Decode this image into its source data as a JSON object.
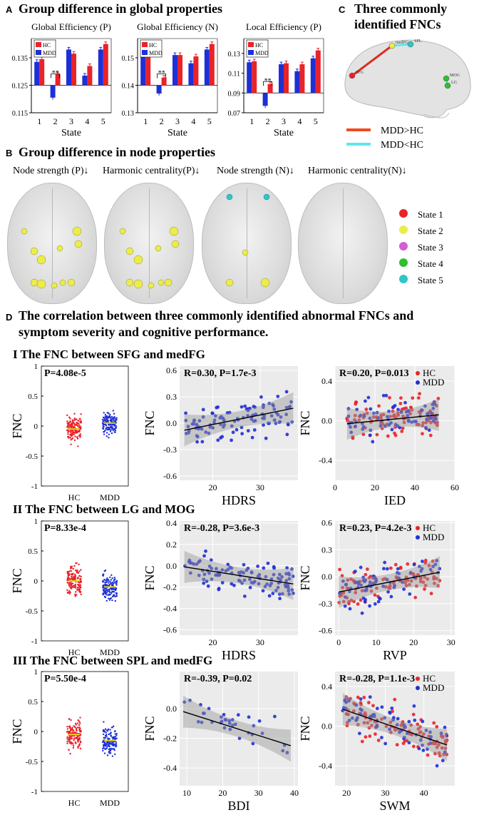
{
  "panel_a": {
    "letter": "A",
    "title": "Group difference in  global properties",
    "x_axis_label": "State",
    "legend": [
      "HC",
      "MDD"
    ],
    "colors": {
      "hc": "#e8232a",
      "mdd": "#1f2fd6"
    }
  },
  "panel_b": {
    "letter": "B",
    "title": "Group difference in  node properties",
    "columns": [
      "Node strength (P)↓",
      "Harmonic centrality(P)↓",
      "Node strength (N)↓",
      "Harmonic centrality(N)↓"
    ],
    "legend": [
      {
        "label": "State 1",
        "color": "#e8232a"
      },
      {
        "label": "State 2",
        "color": "#ecec4a"
      },
      {
        "label": "State 3",
        "color": "#d35fd3"
      },
      {
        "label": "State 4",
        "color": "#2fbf2f"
      },
      {
        "label": "State 5",
        "color": "#2fc6c6"
      }
    ]
  },
  "panel_c": {
    "letter": "C",
    "title_line1": "Three commonly",
    "title_line2": "identified FNCs",
    "node_labels": [
      "SFG",
      "medFG",
      "SPL",
      "MOG",
      "LG"
    ],
    "legend": [
      {
        "label": "MDD>HC",
        "color": "#f04a1e"
      },
      {
        "label": "MDD<HC",
        "color": "#5ee6f0"
      }
    ]
  },
  "panel_d": {
    "letter": "D",
    "title_line1": "The correlation between three commonly identified abnormal FNCs and",
    "title_line2": "symptom severity and cognitive performance.",
    "rows": [
      {
        "title": "I The FNC between SFG and medFG"
      },
      {
        "title": "II The FNC between LG and MOG"
      },
      {
        "title": "III The FNC between SPL and medFG"
      }
    ],
    "group_labels": [
      "HC",
      "MDD"
    ],
    "y_label": "FNC"
  },
  "chart_data": [
    {
      "id": "global-eff-p",
      "type": "bar",
      "title": "Global Efficiency (P)",
      "xlabel": "State",
      "ylabel": "",
      "ylim": [
        0.115,
        0.142
      ],
      "yticks": [
        0.115,
        0.125,
        0.135
      ],
      "ytick_labels": [
        "0.115",
        "0.125",
        "0.135"
      ],
      "baseline": 0.125,
      "categories": [
        "1",
        "2",
        "3",
        "4",
        "5"
      ],
      "series": [
        {
          "name": "HC",
          "values": [
            0.1345,
            0.129,
            0.1365,
            0.132,
            0.14
          ]
        },
        {
          "name": "MDD",
          "values": [
            0.1335,
            0.1205,
            0.138,
            0.1285,
            0.138
          ]
        }
      ],
      "significant": [
        "2"
      ]
    },
    {
      "id": "global-eff-n",
      "type": "bar",
      "title": "Global Efficiency (N)",
      "xlabel": "State",
      "ylabel": "",
      "ylim": [
        0.13,
        0.157
      ],
      "yticks": [
        0.13,
        0.14,
        0.15
      ],
      "ytick_labels": [
        "0.13",
        "0.14",
        "0.15"
      ],
      "baseline": 0.14,
      "categories": [
        "1",
        "2",
        "3",
        "4",
        "5"
      ],
      "series": [
        {
          "name": "HC",
          "values": [
            0.1525,
            0.1428,
            0.151,
            0.1505,
            0.155
          ]
        },
        {
          "name": "MDD",
          "values": [
            0.1515,
            0.137,
            0.151,
            0.148,
            0.153
          ]
        }
      ],
      "significant": [
        "2"
      ]
    },
    {
      "id": "local-eff-p",
      "type": "bar",
      "title": "Local Efficiency (P)",
      "xlabel": "State",
      "ylabel": "",
      "ylim": [
        0.07,
        0.145
      ],
      "yticks": [
        0.07,
        0.09,
        0.11,
        0.13
      ],
      "ytick_labels": [
        "0.07",
        "0.09",
        "0.11",
        "0.13"
      ],
      "baseline": 0.09,
      "categories": [
        "1",
        "2",
        "3",
        "4",
        "5"
      ],
      "series": [
        {
          "name": "HC",
          "values": [
            0.122,
            0.099,
            0.12,
            0.119,
            0.133
          ]
        },
        {
          "name": "MDD",
          "values": [
            0.121,
            0.077,
            0.119,
            0.112,
            0.125
          ]
        }
      ],
      "significant": [
        "2"
      ]
    },
    {
      "id": "strip-1",
      "type": "scatter",
      "title": "P=4.08e-5",
      "xlabel": "",
      "ylabel": "FNC",
      "ylim": [
        -1,
        1
      ],
      "yticks": [
        -1,
        -0.5,
        0,
        0.5,
        1
      ],
      "ytick_labels": [
        "-1",
        "-0.5",
        "0",
        "0.5",
        "1"
      ],
      "categories": [
        "HC",
        "MDD"
      ],
      "means": [
        -0.05,
        0.05
      ],
      "spread": [
        [
          -0.6,
          0.48
        ],
        [
          -0.38,
          0.45
        ]
      ]
    },
    {
      "id": "scatter-1a",
      "type": "scatter",
      "title": "R=0.30, P=1.7e-3",
      "xlabel": "HDRS",
      "ylabel": "FNC",
      "xlim": [
        13,
        38
      ],
      "ylim": [
        -0.65,
        0.65
      ],
      "xticks": [
        20,
        30
      ],
      "xtick_labels": [
        "20",
        "30"
      ],
      "yticks": [
        -0.6,
        -0.3,
        0.0,
        0.3,
        0.6
      ],
      "ytick_labels": [
        "-0.6",
        "-0.3",
        "0.0",
        "0.3",
        "0.6"
      ],
      "fit": [
        [
          14,
          -0.08
        ],
        [
          37,
          0.17
        ]
      ],
      "series": [
        {
          "name": "MDD",
          "count": 110
        }
      ]
    },
    {
      "id": "scatter-1b",
      "type": "scatter",
      "title": "R=0.20, P=0.013",
      "xlabel": "IED",
      "ylabel": "FNC",
      "xlim": [
        0,
        60
      ],
      "ylim": [
        -0.6,
        0.55
      ],
      "xticks": [
        0,
        20,
        40,
        60
      ],
      "xtick_labels": [
        "0",
        "20",
        "40",
        "60"
      ],
      "yticks": [
        -0.4,
        0.0,
        0.4
      ],
      "ytick_labels": [
        "-0.4",
        "0.0",
        "0.4"
      ],
      "fit": [
        [
          6,
          -0.03
        ],
        [
          52,
          0.06
        ]
      ],
      "series": [
        {
          "name": "HC",
          "count": 100
        },
        {
          "name": "MDD",
          "count": 70
        }
      ]
    },
    {
      "id": "strip-2",
      "type": "scatter",
      "title": "P=8.33e-4",
      "xlabel": "",
      "ylabel": "FNC",
      "ylim": [
        -1,
        1
      ],
      "yticks": [
        -1,
        -0.5,
        0,
        0.5,
        1
      ],
      "ytick_labels": [
        "-1",
        "-0.5",
        "0",
        "0.5",
        "1"
      ],
      "categories": [
        "HC",
        "MDD"
      ],
      "means": [
        0.0,
        -0.1
      ],
      "spread": [
        [
          -0.72,
          0.55
        ],
        [
          -0.55,
          0.38
        ]
      ]
    },
    {
      "id": "scatter-2a",
      "type": "scatter",
      "title": "R=-0.28, P=3.6e-3",
      "xlabel": "HDRS",
      "ylabel": "FNC",
      "xlim": [
        13,
        38
      ],
      "ylim": [
        -0.65,
        0.42
      ],
      "xticks": [
        20,
        30
      ],
      "xtick_labels": [
        "20",
        "30"
      ],
      "yticks": [
        -0.6,
        -0.4,
        -0.2,
        0.0,
        0.2,
        0.4
      ],
      "ytick_labels": [
        "-0.6",
        "-0.4",
        "-0.2",
        "0.0",
        "0.2",
        "0.4"
      ],
      "fit": [
        [
          14,
          -0.01
        ],
        [
          37,
          -0.17
        ]
      ],
      "series": [
        {
          "name": "MDD",
          "count": 110
        }
      ]
    },
    {
      "id": "scatter-2b",
      "type": "scatter",
      "title": "R=0.23, P=4.2e-3",
      "xlabel": "RVP",
      "ylabel": "FNC",
      "xlim": [
        -1,
        31
      ],
      "ylim": [
        -0.65,
        0.62
      ],
      "xticks": [
        0,
        10,
        20,
        30
      ],
      "xtick_labels": [
        "0",
        "10",
        "20",
        "30"
      ],
      "yticks": [
        -0.6,
        -0.3,
        0.0,
        0.3,
        0.6
      ],
      "ytick_labels": [
        "-0.6",
        "-0.3",
        "0.0",
        "0.3",
        "0.6"
      ],
      "fit": [
        [
          0,
          -0.17
        ],
        [
          27,
          0.05
        ]
      ],
      "series": [
        {
          "name": "HC",
          "count": 100
        },
        {
          "name": "MDD",
          "count": 70
        }
      ]
    },
    {
      "id": "strip-3",
      "type": "scatter",
      "title": "P=5.50e-4",
      "xlabel": "",
      "ylabel": "FNC",
      "ylim": [
        -1,
        1
      ],
      "yticks": [
        -1,
        -0.5,
        0,
        0.5,
        1
      ],
      "ytick_labels": [
        "-1",
        "-0.5",
        "0",
        "0.5",
        "1"
      ],
      "categories": [
        "HC",
        "MDD"
      ],
      "means": [
        -0.05,
        -0.15
      ],
      "spread": [
        [
          -0.6,
          0.55
        ],
        [
          -0.6,
          0.45
        ]
      ]
    },
    {
      "id": "scatter-3a",
      "type": "scatter",
      "title": "R=-0.39, P=0.02",
      "xlabel": "BDI",
      "ylabel": "FNC",
      "xlim": [
        8,
        41
      ],
      "ylim": [
        -0.52,
        0.25
      ],
      "xticks": [
        10,
        20,
        30,
        40
      ],
      "xtick_labels": [
        "10",
        "20",
        "30",
        "40"
      ],
      "yticks": [
        -0.4,
        -0.2,
        0.0
      ],
      "ytick_labels": [
        "-0.4",
        "-0.2",
        "0.0"
      ],
      "fit": [
        [
          9,
          -0.02
        ],
        [
          39,
          -0.25
        ]
      ],
      "series": [
        {
          "name": "MDD",
          "count": 35
        }
      ]
    },
    {
      "id": "scatter-3b",
      "type": "scatter",
      "title": "R=-0.28, P=1.1e-3",
      "xlabel": "SWM",
      "ylabel": "FNC",
      "xlim": [
        17,
        48
      ],
      "ylim": [
        -0.6,
        0.55
      ],
      "xticks": [
        20,
        30,
        40
      ],
      "xtick_labels": [
        "20",
        "30",
        "40"
      ],
      "yticks": [
        -0.4,
        0.0,
        0.4
      ],
      "ytick_labels": [
        "-0.4",
        "0.0",
        "0.4"
      ],
      "fit": [
        [
          19,
          0.17
        ],
        [
          46,
          -0.19
        ]
      ],
      "series": [
        {
          "name": "HC",
          "count": 100
        },
        {
          "name": "MDD",
          "count": 70
        }
      ]
    }
  ]
}
